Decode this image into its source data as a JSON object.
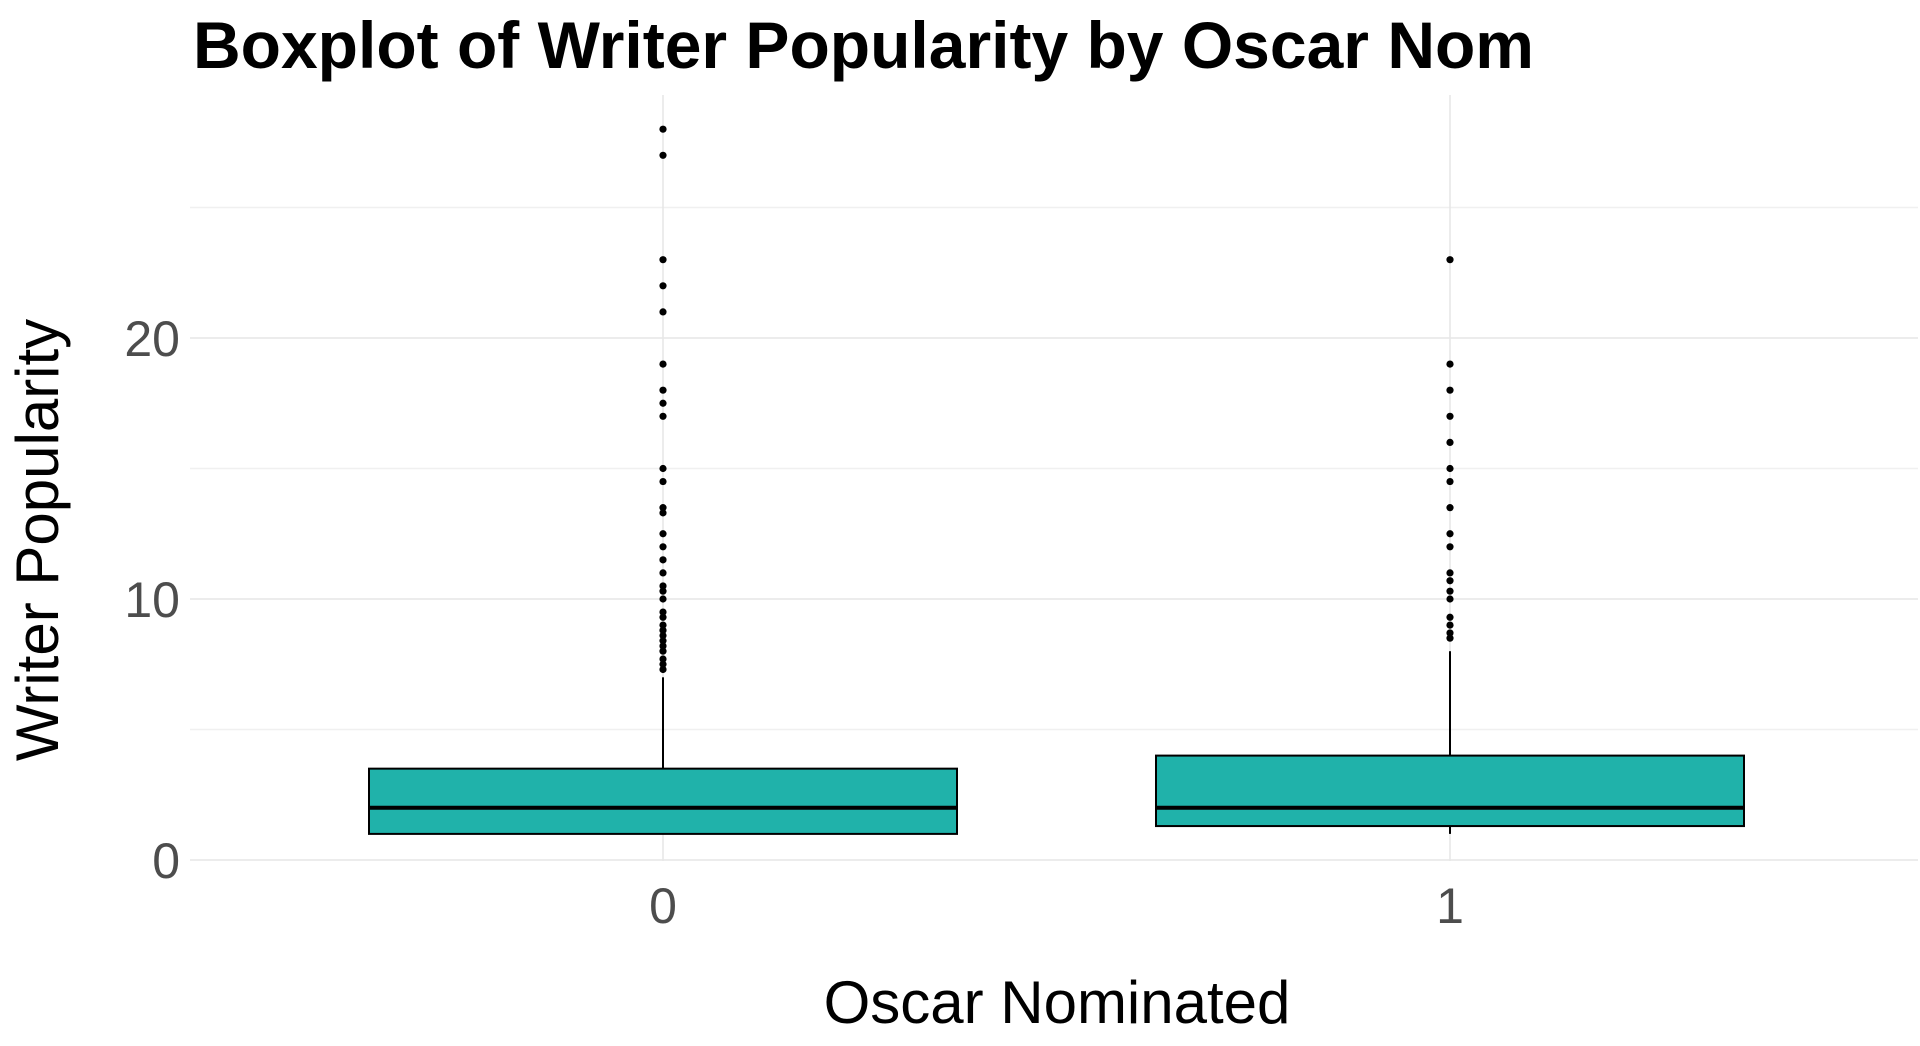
{
  "chart_data": {
    "type": "boxplot",
    "title": "Boxplot of Writer Popularity by Oscar Nom",
    "xlabel": "Oscar Nominated",
    "ylabel": "Writer Popularity",
    "categories": [
      "0",
      "1"
    ],
    "ylim": [
      0,
      28.5
    ],
    "yticks": [
      0,
      10,
      20
    ],
    "grid": true,
    "legend": "none",
    "colors": {
      "box_fill": "#20b2aa",
      "box_stroke": "#000000",
      "grid_major": "#e6e6e6",
      "grid_minor": "#f0f0f0",
      "tick_text": "#4d4d4d"
    },
    "boxes": [
      {
        "category": "0",
        "whisker_low": 1.0,
        "q1": 1.0,
        "median": 2.0,
        "q3": 3.5,
        "whisker_high": 7.0,
        "outliers": [
          7.3,
          7.5,
          7.7,
          8.0,
          8.2,
          8.4,
          8.6,
          8.8,
          9.0,
          9.3,
          9.5,
          10.0,
          10.3,
          10.5,
          11.0,
          11.5,
          12.0,
          12.5,
          13.3,
          13.5,
          14.5,
          15.0,
          17.0,
          17.5,
          18.0,
          19.0,
          21.0,
          22.0,
          23.0,
          27.0,
          28.0
        ]
      },
      {
        "category": "1",
        "whisker_low": 1.0,
        "q1": 1.3,
        "median": 2.0,
        "q3": 4.0,
        "whisker_high": 8.0,
        "outliers": [
          8.5,
          8.7,
          9.0,
          9.3,
          10.0,
          10.3,
          10.7,
          11.0,
          12.0,
          12.5,
          13.5,
          14.5,
          15.0,
          16.0,
          17.0,
          18.0,
          19.0,
          23.0
        ]
      }
    ]
  }
}
